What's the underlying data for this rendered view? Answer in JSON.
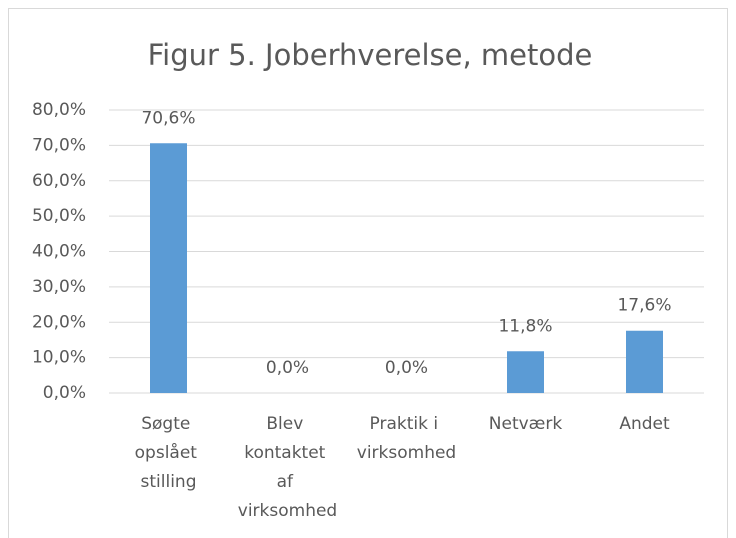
{
  "chart_data": {
    "type": "bar",
    "title": "Figur 5. Joberhverelse, metode",
    "categories": [
      "Søgte opslået stilling",
      "Blev kontaktet af virksomhed",
      "Praktik i virksomhed",
      "Netværk",
      "Andet"
    ],
    "values": [
      70.6,
      0,
      0,
      11.8,
      17.6
    ],
    "value_labels": [
      "70,6%",
      "0,0%",
      "0,0%",
      "11,8%",
      "17,6%"
    ],
    "color": "#5b9bd5",
    "ylim": [
      0,
      80
    ],
    "yticks": [
      {
        "value": 0,
        "label": "0,0%"
      },
      {
        "value": 10,
        "label": "10,0%"
      },
      {
        "value": 20,
        "label": "20,0%"
      },
      {
        "value": 30,
        "label": "30,0%"
      },
      {
        "value": 40,
        "label": "40,0%"
      },
      {
        "value": 50,
        "label": "50,0%"
      },
      {
        "value": 60,
        "label": "60,0%"
      },
      {
        "value": 70,
        "label": "70,0%"
      },
      {
        "value": 80,
        "label": "80,0%"
      }
    ],
    "grid": true
  }
}
